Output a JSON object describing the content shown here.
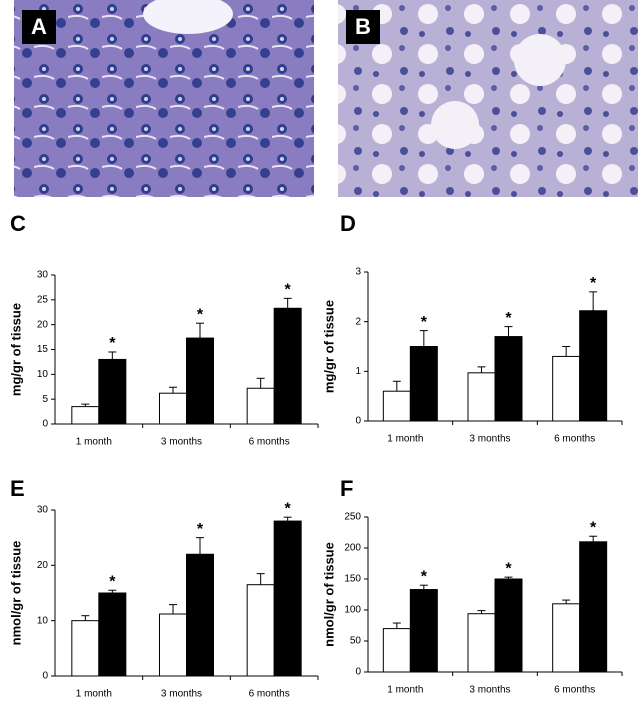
{
  "panel_labels": [
    "A",
    "B"
  ],
  "chart_data": [
    {
      "type": "bar",
      "panel": "C",
      "ylabel": "mg/gr of tissue",
      "categories": [
        "1 month",
        "3 months",
        "6 months"
      ],
      "series": [
        {
          "color": "#ffffff",
          "values": [
            3.5,
            6.2,
            7.2
          ],
          "errors": [
            0.5,
            1.2,
            2.0
          ]
        },
        {
          "color": "#000000",
          "values": [
            13,
            17.3,
            23.3
          ],
          "errors": [
            1.5,
            3,
            2
          ]
        }
      ],
      "annotations": [
        "*",
        "*",
        "*"
      ],
      "ylim": [
        0,
        30
      ],
      "yticks": [
        0,
        5,
        10,
        15,
        20,
        25,
        30
      ]
    },
    {
      "type": "bar",
      "panel": "D",
      "ylabel": "mg/gr of tissue",
      "categories": [
        "1 month",
        "3 months",
        "6 months"
      ],
      "series": [
        {
          "color": "#ffffff",
          "values": [
            0.6,
            0.97,
            1.3
          ],
          "errors": [
            0.2,
            0.12,
            0.2
          ]
        },
        {
          "color": "#000000",
          "values": [
            1.5,
            1.7,
            2.22
          ],
          "errors": [
            0.32,
            0.2,
            0.38
          ]
        }
      ],
      "annotations": [
        "*",
        "*",
        "*"
      ],
      "ylim": [
        0,
        3
      ],
      "yticks": [
        0,
        1,
        2,
        3
      ]
    },
    {
      "type": "bar",
      "panel": "E",
      "ylabel": "nmol/gr of tissue",
      "categories": [
        "1 month",
        "3 months",
        "6 months"
      ],
      "series": [
        {
          "color": "#ffffff",
          "values": [
            10,
            11.2,
            16.5
          ],
          "errors": [
            0.9,
            1.7,
            2
          ]
        },
        {
          "color": "#000000",
          "values": [
            15,
            22,
            28
          ],
          "errors": [
            0.5,
            3,
            0.7
          ]
        }
      ],
      "annotations": [
        "*",
        "*",
        "*"
      ],
      "ylim": [
        0,
        30
      ],
      "yticks": [
        0,
        10,
        20,
        30
      ]
    },
    {
      "type": "bar",
      "panel": "F",
      "ylabel": "nmol/gr of tissue",
      "categories": [
        "1 month",
        "3 months",
        "6 months"
      ],
      "series": [
        {
          "color": "#ffffff",
          "values": [
            70,
            94,
            110
          ],
          "errors": [
            9,
            5,
            6
          ]
        },
        {
          "color": "#000000",
          "values": [
            133,
            150,
            210
          ],
          "errors": [
            7,
            3,
            9
          ]
        }
      ],
      "annotations": [
        "*",
        "*",
        "*"
      ],
      "ylim": [
        0,
        250
      ],
      "yticks": [
        0,
        50,
        100,
        150,
        200,
        250
      ]
    }
  ]
}
